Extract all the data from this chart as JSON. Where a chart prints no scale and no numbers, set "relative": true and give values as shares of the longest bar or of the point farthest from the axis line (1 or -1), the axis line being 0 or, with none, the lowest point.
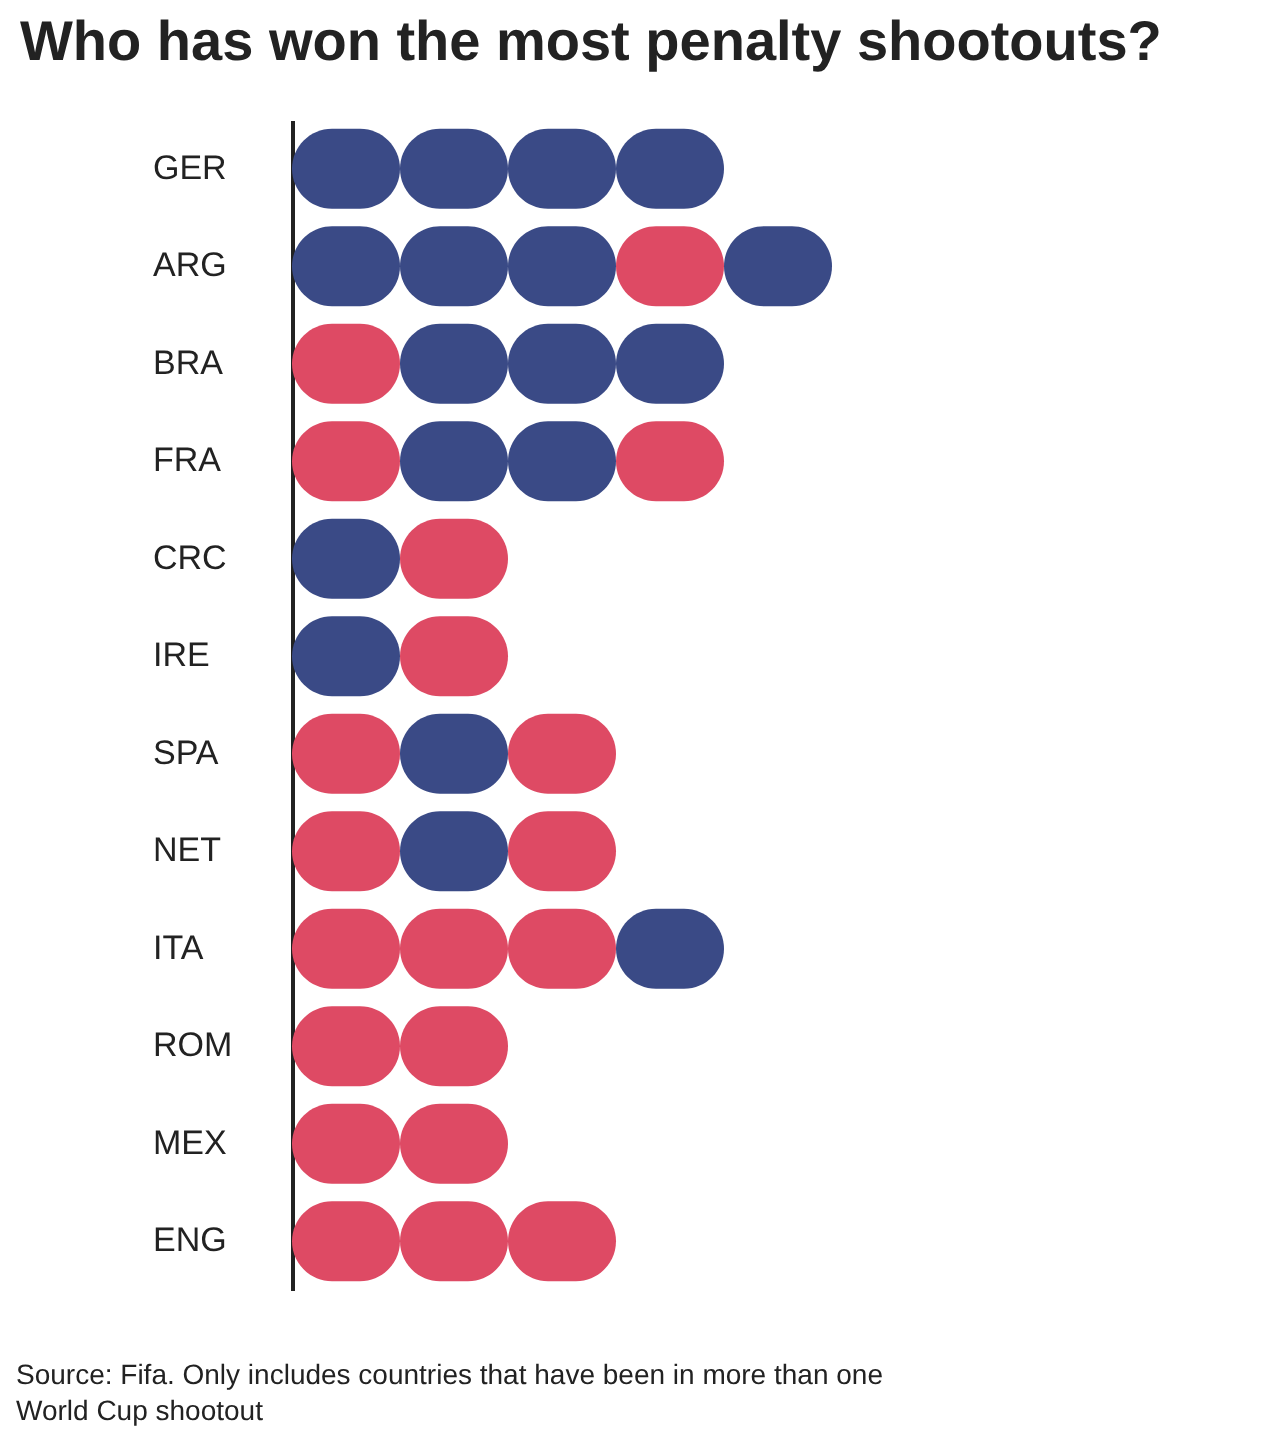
{
  "chart_data": {
    "type": "bar",
    "orientation": "horizontal",
    "stacked": true,
    "relative": true,
    "title": "Who has won the most penalty shootouts?",
    "categories": [
      "GER",
      "ARG",
      "BRA",
      "FRA",
      "CRC",
      "IRE",
      "SPA",
      "NET",
      "ITA",
      "ROM",
      "MEX",
      "ENG"
    ],
    "series": [
      {
        "values": [
          0.2,
          0.2,
          0.2,
          0.2,
          0.2,
          0.2,
          0.2,
          0.2,
          0.2,
          0.2,
          0.2,
          0.2
        ],
        "colors": [
          "#3a4a86",
          "#3a4a86",
          "#de4a64",
          "#de4a64",
          "#3a4a86",
          "#3a4a86",
          "#de4a64",
          "#de4a64",
          "#de4a64",
          "#de4a64",
          "#de4a64",
          "#de4a64"
        ]
      },
      {
        "values": [
          0.2,
          0.2,
          0.2,
          0.2,
          0.2,
          0.2,
          0.2,
          0.2,
          0.2,
          0.2,
          0.2,
          0.2
        ],
        "colors": [
          "#3a4a86",
          "#3a4a86",
          "#3a4a86",
          "#3a4a86",
          "#de4a64",
          "#de4a64",
          "#3a4a86",
          "#3a4a86",
          "#de4a64",
          "#de4a64",
          "#de4a64",
          "#de4a64"
        ]
      },
      {
        "values": [
          0.2,
          0.2,
          0.2,
          0.2,
          null,
          null,
          0.2,
          0.2,
          0.2,
          null,
          null,
          0.2
        ],
        "colors": [
          "#3a4a86",
          "#3a4a86",
          "#3a4a86",
          "#3a4a86",
          null,
          null,
          "#de4a64",
          "#de4a64",
          "#de4a64",
          null,
          null,
          "#de4a64"
        ]
      },
      {
        "values": [
          0.2,
          0.2,
          0.2,
          0.2,
          null,
          null,
          null,
          null,
          0.2,
          null,
          null,
          null
        ],
        "colors": [
          "#3a4a86",
          "#de4a64",
          "#3a4a86",
          "#de4a64",
          null,
          null,
          null,
          null,
          "#3a4a86",
          null,
          null,
          null
        ]
      },
      {
        "values": [
          null,
          0.2,
          null,
          null,
          null,
          null,
          null,
          null,
          null,
          null,
          null,
          null
        ],
        "colors": [
          null,
          "#3a4a86",
          null,
          null,
          null,
          null,
          null,
          null,
          null,
          null,
          null,
          null
        ]
      }
    ],
    "annotations": [
      "Source: Fifa. Only includes countries that have been in more than one World Cup shootout"
    ]
  }
}
